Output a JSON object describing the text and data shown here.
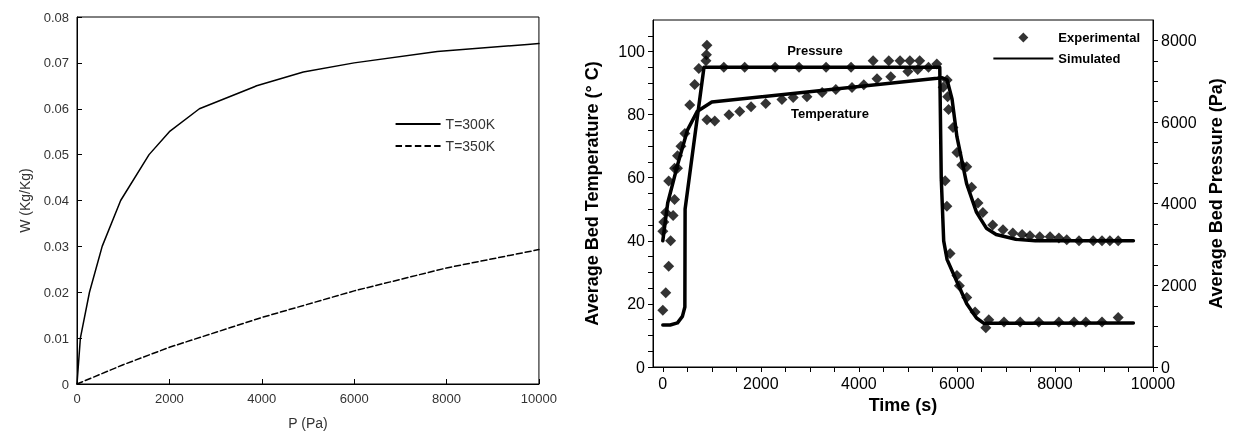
{
  "chart_data": [
    {
      "type": "line",
      "xlabel": "P (Pa)",
      "ylabel": "W (Kg/Kg)",
      "xlim": [
        0,
        10000
      ],
      "ylim": [
        0,
        0.08
      ],
      "xticks": [
        0,
        2000,
        4000,
        6000,
        8000,
        10000
      ],
      "yticks": [
        0,
        0.01,
        0.02,
        0.03,
        0.04,
        0.05,
        0.06,
        0.07,
        0.08
      ],
      "legend": "right",
      "series": [
        {
          "name": "T=300K",
          "color": "#000000",
          "line_style": "solid",
          "marker": "none",
          "x": [
            0,
            73,
            270,
            545,
            945,
            1560,
            2000,
            2650,
            3890,
            4900,
            6000,
            7800,
            9750,
            10000
          ],
          "values": [
            0,
            0.01,
            0.02,
            0.03,
            0.04,
            0.05,
            0.055,
            0.06,
            0.065,
            0.068,
            0.07,
            0.0725,
            0.074,
            0.0742
          ]
        },
        {
          "name": "T=350K",
          "color": "#000000",
          "line_style": "dashed",
          "marker": "none",
          "x": [
            0,
            1000,
            2000,
            4000,
            6000,
            8000,
            10000
          ],
          "values": [
            0,
            0.0042,
            0.008,
            0.0145,
            0.0203,
            0.0253,
            0.0293
          ]
        }
      ]
    },
    {
      "type": "line",
      "xlabel": "Time (s)",
      "ylabel": "Average Bed Temperature (° C)",
      "y2label": "Average Bed Pressure (Pa)",
      "xlim": [
        -200,
        10000
      ],
      "ylim": [
        0,
        110
      ],
      "y2lim": [
        0,
        8500
      ],
      "legend": "top right",
      "xticks": [
        0,
        {
          "value": 500,
          "label": null
        },
        {
          "value": 1000,
          "label": null
        },
        {
          "value": 1500,
          "label": null
        },
        2000,
        {
          "value": 2500,
          "label": null
        },
        {
          "value": 3000,
          "label": null
        },
        {
          "value": 3500,
          "label": null
        },
        4000,
        {
          "value": 4500,
          "label": null
        },
        {
          "value": 5000,
          "label": null
        },
        {
          "value": 5500,
          "label": null
        },
        6000,
        {
          "value": 6500,
          "label": null
        },
        {
          "value": 7000,
          "label": null
        },
        {
          "value": 7500,
          "label": null
        },
        8000,
        {
          "value": 8500,
          "label": null
        },
        {
          "value": 9000,
          "label": null
        },
        {
          "value": 9500,
          "label": null
        },
        10000
      ],
      "yticks": [
        0,
        {
          "value": 5,
          "label": null
        },
        {
          "value": 10,
          "label": null
        },
        {
          "value": 15,
          "label": null
        },
        20,
        {
          "value": 25,
          "label": null
        },
        {
          "value": 30,
          "label": null
        },
        {
          "value": 35,
          "label": null
        },
        40,
        {
          "value": 45,
          "label": null
        },
        {
          "value": 50,
          "label": null
        },
        {
          "value": 55,
          "label": null
        },
        60,
        {
          "value": 65,
          "label": null
        },
        {
          "value": 70,
          "label": null
        },
        {
          "value": 75,
          "label": null
        },
        80,
        {
          "value": 85,
          "label": null
        },
        {
          "value": 90,
          "label": null
        },
        {
          "value": 95,
          "label": null
        },
        100,
        {
          "value": 105,
          "label": null
        }
      ],
      "y2ticks": [
        0,
        {
          "value": 500,
          "label": null
        },
        {
          "value": 1000,
          "label": null
        },
        {
          "value": 1500,
          "label": null
        },
        2000,
        {
          "value": 2500,
          "label": null
        },
        {
          "value": 3000,
          "label": null
        },
        {
          "value": 3500,
          "label": null
        },
        4000,
        {
          "value": 4500,
          "label": null
        },
        {
          "value": 5000,
          "label": null
        },
        {
          "value": 5500,
          "label": null
        },
        6000,
        {
          "value": 6500,
          "label": null
        },
        {
          "value": 7000,
          "label": null
        },
        {
          "value": 7500,
          "label": null
        },
        8000
      ],
      "annotations": [
        "Pressure",
        "Temperature"
      ],
      "series": [
        {
          "name": "Experimental",
          "type": "scatter",
          "marker": "diamond",
          "color": "#000000",
          "x": [
            0,
            20,
            60,
            120,
            240,
            300,
            370,
            450,
            900,
            1060,
            1350,
            1570,
            1800,
            2100,
            2430,
            2660,
            2940,
            3250,
            3530,
            3860,
            4100,
            4370,
            4650,
            5000,
            5200,
            5420,
            5800,
            5810,
            5830,
            5920,
            6000,
            6100,
            6200,
            6300,
            6430,
            6530,
            6730,
            6940,
            7140,
            7330,
            7490,
            7690,
            7900,
            8080,
            8240,
            8490,
            8780,
            8960,
            9120,
            9290
          ],
          "values": [
            43,
            46,
            49,
            59,
            63,
            67,
            70,
            74,
            78.4,
            78,
            80,
            81,
            82.5,
            83.5,
            84.8,
            85.4,
            85.7,
            87,
            88,
            88.6,
            89.5,
            91.4,
            92,
            93.7,
            94.3,
            95,
            91,
            85.7,
            81.6,
            75.9,
            68,
            64,
            63.5,
            57,
            52,
            49,
            45,
            43.5,
            42.5,
            42,
            41.6,
            41.3,
            41.3,
            40.9,
            40.3,
            40,
            40,
            40,
            40,
            40
          ]
        },
        {
          "type": "scatter",
          "axis": "y2",
          "marker": "diamond",
          "color": "#000000",
          "x": [
            0,
            60,
            120,
            160,
            210,
            240,
            300,
            550,
            650,
            735,
            880,
            890,
            900,
            1245,
            1670,
            2290,
            2780,
            3330,
            3840,
            4290,
            4610,
            4840,
            5040,
            5240,
            5590,
            5720,
            5760,
            5795,
            5860,
            6000,
            6050,
            6200,
            6370,
            6590,
            6650,
            6960,
            7290,
            7670,
            8080,
            8390,
            8630,
            8960,
            9290
          ],
          "values": [
            1390,
            1820,
            2470,
            3090,
            3710,
            4100,
            4870,
            6420,
            6920,
            7310,
            7500,
            7650,
            7880,
            7340,
            7340,
            7340,
            7340,
            7340,
            7340,
            7500,
            7500,
            7500,
            7500,
            7500,
            7420,
            6850,
            4560,
            3940,
            2780,
            2240,
            1990,
            1700,
            1350,
            960,
            1160,
            1100,
            1100,
            1100,
            1100,
            1100,
            1100,
            1100,
            1210
          ]
        },
        {
          "name": "Simulated",
          "marker": "none",
          "color": "#000000",
          "x": [
            0,
            100,
            300,
            500,
            700,
            1000,
            5600,
            5700,
            5800,
            5900,
            6000,
            6200,
            6400,
            6600,
            6800,
            7200,
            7600,
            9600
          ],
          "values": [
            40,
            52,
            64,
            75,
            81,
            84,
            91.5,
            91.7,
            91,
            85,
            73,
            58,
            49,
            44,
            42,
            40.5,
            40,
            40
          ]
        },
        {
          "axis": "y2",
          "marker": "none",
          "color": "#000000",
          "x": [
            0,
            150,
            300,
            400,
            450,
            455,
            840,
            5650,
            5680,
            5730,
            5800,
            6000,
            6200,
            6400,
            6550,
            9600
          ],
          "values": [
            1030,
            1030,
            1080,
            1240,
            1470,
            3870,
            7340,
            7340,
            4640,
            3090,
            2630,
            2090,
            1550,
            1200,
            1070,
            1080
          ]
        }
      ]
    }
  ]
}
